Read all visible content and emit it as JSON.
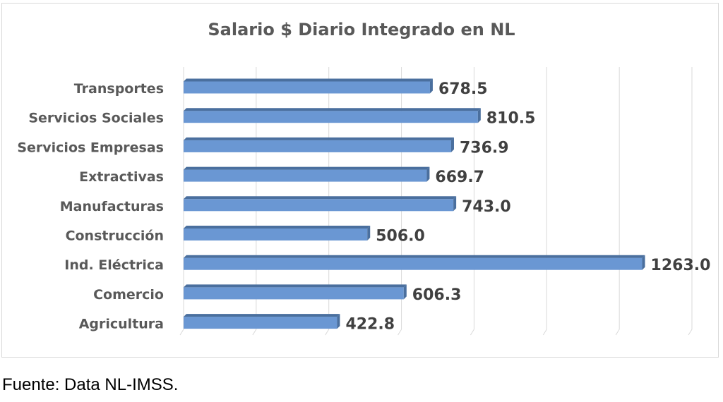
{
  "chart_data": {
    "type": "bar",
    "orientation": "horizontal",
    "title": "Salario $ Diario Integrado en NL",
    "categories": [
      "Transportes",
      "Servicios Sociales",
      "Servicios Empresas",
      "Extractivas",
      "Manufacturas",
      "Construcción",
      "Ind. Eléctrica",
      "Comercio",
      "Agricultura"
    ],
    "values": [
      678.5,
      810.5,
      736.9,
      669.7,
      743.0,
      506.0,
      1263.0,
      606.3,
      422.8
    ],
    "value_labels": [
      "678.5",
      "810.5",
      "736.9",
      "669.7",
      "743.0",
      "506.0",
      "1263.0",
      "606.3",
      "422.8"
    ],
    "xlim": [
      0,
      1400
    ],
    "grid": true,
    "bar_color": "#6a97d3",
    "bar_dark_color": "#4a6f9e",
    "legend": "none"
  },
  "source_note": "Fuente: Data NL-IMSS."
}
